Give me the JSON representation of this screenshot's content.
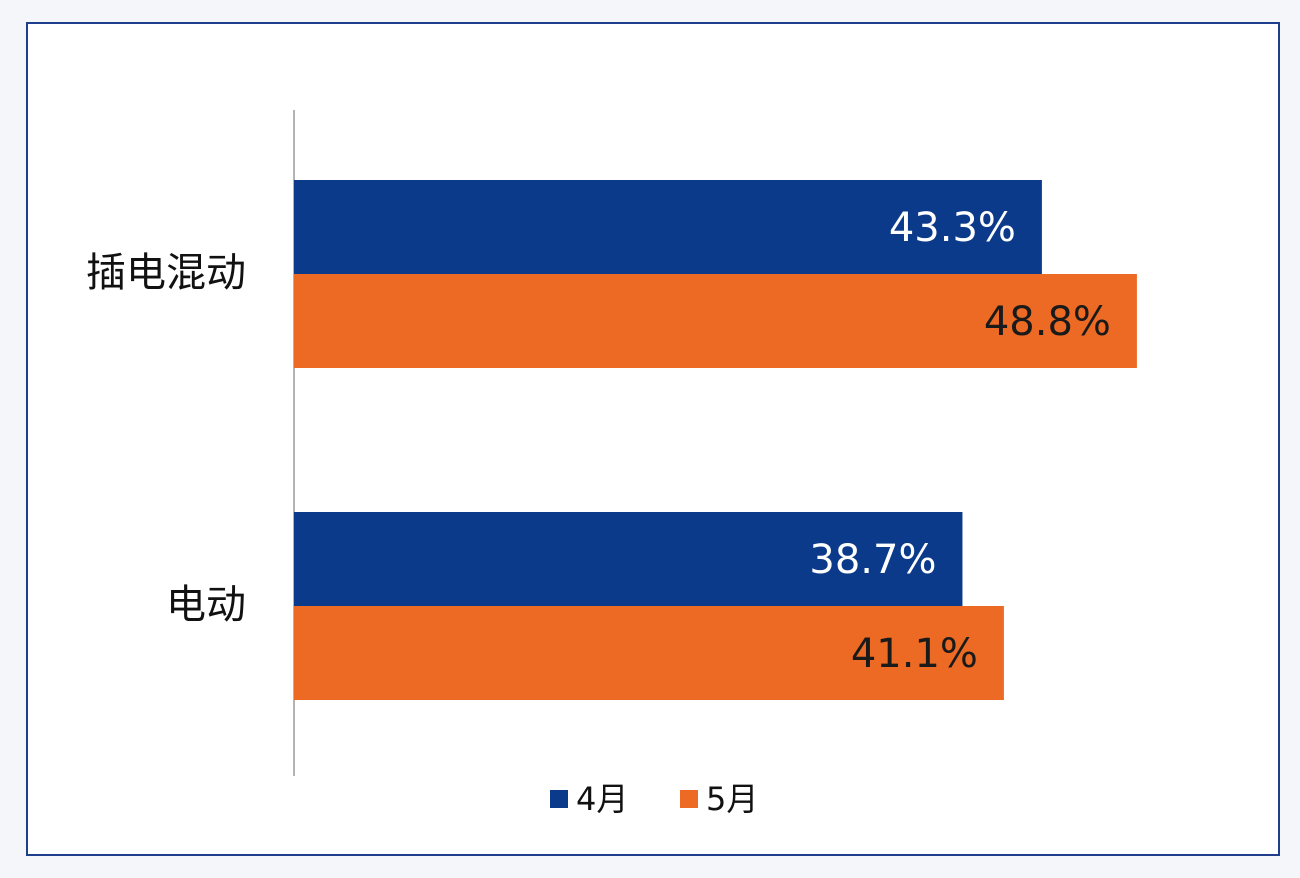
{
  "chart_data": {
    "type": "bar",
    "orientation": "horizontal",
    "categories": [
      "插电混动",
      "电动"
    ],
    "series": [
      {
        "name": "4月",
        "color": "#0b3a8a",
        "label_color": "#ffffff",
        "values": [
          43.3,
          38.7
        ],
        "labels": [
          "43.3%",
          "38.7%"
        ]
      },
      {
        "name": "5月",
        "color": "#ec6a23",
        "label_color": "#1a1a1a",
        "values": [
          48.8,
          41.1
        ],
        "labels": [
          "48.8%",
          "41.1%"
        ]
      }
    ],
    "xlim": [
      0,
      55
    ],
    "grid": false,
    "legend_position": "bottom",
    "title": "",
    "xlabel": "",
    "ylabel": ""
  }
}
